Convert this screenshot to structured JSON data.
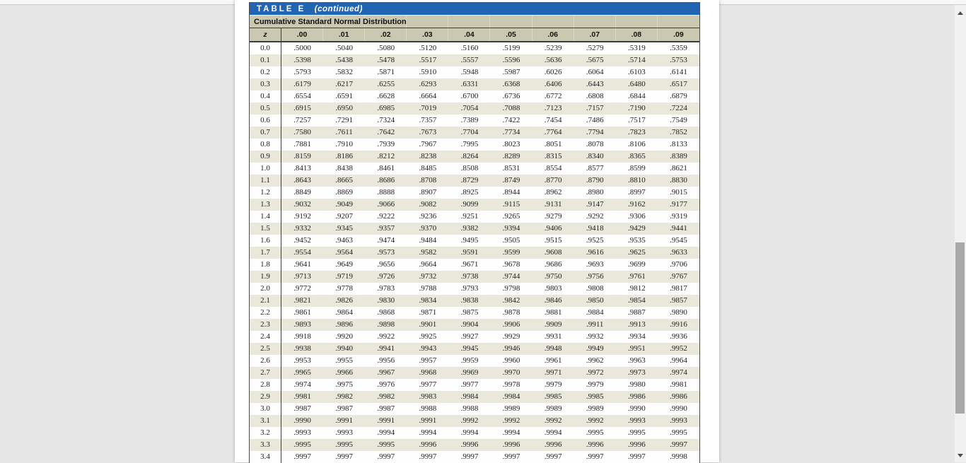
{
  "document": {
    "table_label": "TABLE E",
    "table_continued": "(continued)",
    "subtitle": "Cumulative Standard Normal Distribution"
  },
  "chart_data": {
    "type": "table",
    "title": "Cumulative Standard Normal Distribution",
    "columns": [
      "z",
      ".00",
      ".01",
      ".02",
      ".03",
      ".04",
      ".05",
      ".06",
      ".07",
      ".08",
      ".09"
    ],
    "rows": [
      [
        "0.0",
        ".5000",
        ".5040",
        ".5080",
        ".5120",
        ".5160",
        ".5199",
        ".5239",
        ".5279",
        ".5319",
        ".5359"
      ],
      [
        "0.1",
        ".5398",
        ".5438",
        ".5478",
        ".5517",
        ".5557",
        ".5596",
        ".5636",
        ".5675",
        ".5714",
        ".5753"
      ],
      [
        "0.2",
        ".5793",
        ".5832",
        ".5871",
        ".5910",
        ".5948",
        ".5987",
        ".6026",
        ".6064",
        ".6103",
        ".6141"
      ],
      [
        "0.3",
        ".6179",
        ".6217",
        ".6255",
        ".6293",
        ".6331",
        ".6368",
        ".6406",
        ".6443",
        ".6480",
        ".6517"
      ],
      [
        "0.4",
        ".6554",
        ".6591",
        ".6628",
        ".6664",
        ".6700",
        ".6736",
        ".6772",
        ".6808",
        ".6844",
        ".6879"
      ],
      [
        "0.5",
        ".6915",
        ".6950",
        ".6985",
        ".7019",
        ".7054",
        ".7088",
        ".7123",
        ".7157",
        ".7190",
        ".7224"
      ],
      [
        "0.6",
        ".7257",
        ".7291",
        ".7324",
        ".7357",
        ".7389",
        ".7422",
        ".7454",
        ".7486",
        ".7517",
        ".7549"
      ],
      [
        "0.7",
        ".7580",
        ".7611",
        ".7642",
        ".7673",
        ".7704",
        ".7734",
        ".7764",
        ".7794",
        ".7823",
        ".7852"
      ],
      [
        "0.8",
        ".7881",
        ".7910",
        ".7939",
        ".7967",
        ".7995",
        ".8023",
        ".8051",
        ".8078",
        ".8106",
        ".8133"
      ],
      [
        "0.9",
        ".8159",
        ".8186",
        ".8212",
        ".8238",
        ".8264",
        ".8289",
        ".8315",
        ".8340",
        ".8365",
        ".8389"
      ],
      [
        "1.0",
        ".8413",
        ".8438",
        ".8461",
        ".8485",
        ".8508",
        ".8531",
        ".8554",
        ".8577",
        ".8599",
        ".8621"
      ],
      [
        "1.1",
        ".8643",
        ".8665",
        ".8686",
        ".8708",
        ".8729",
        ".8749",
        ".8770",
        ".8790",
        ".8810",
        ".8830"
      ],
      [
        "1.2",
        ".8849",
        ".8869",
        ".8888",
        ".8907",
        ".8925",
        ".8944",
        ".8962",
        ".8980",
        ".8997",
        ".9015"
      ],
      [
        "1.3",
        ".9032",
        ".9049",
        ".9066",
        ".9082",
        ".9099",
        ".9115",
        ".9131",
        ".9147",
        ".9162",
        ".9177"
      ],
      [
        "1.4",
        ".9192",
        ".9207",
        ".9222",
        ".9236",
        ".9251",
        ".9265",
        ".9279",
        ".9292",
        ".9306",
        ".9319"
      ],
      [
        "1.5",
        ".9332",
        ".9345",
        ".9357",
        ".9370",
        ".9382",
        ".9394",
        ".9406",
        ".9418",
        ".9429",
        ".9441"
      ],
      [
        "1.6",
        ".9452",
        ".9463",
        ".9474",
        ".9484",
        ".9495",
        ".9505",
        ".9515",
        ".9525",
        ".9535",
        ".9545"
      ],
      [
        "1.7",
        ".9554",
        ".9564",
        ".9573",
        ".9582",
        ".9591",
        ".9599",
        ".9608",
        ".9616",
        ".9625",
        ".9633"
      ],
      [
        "1.8",
        ".9641",
        ".9649",
        ".9656",
        ".9664",
        ".9671",
        ".9678",
        ".9686",
        ".9693",
        ".9699",
        ".9706"
      ],
      [
        "1.9",
        ".9713",
        ".9719",
        ".9726",
        ".9732",
        ".9738",
        ".9744",
        ".9750",
        ".9756",
        ".9761",
        ".9767"
      ],
      [
        "2.0",
        ".9772",
        ".9778",
        ".9783",
        ".9788",
        ".9793",
        ".9798",
        ".9803",
        ".9808",
        ".9812",
        ".9817"
      ],
      [
        "2.1",
        ".9821",
        ".9826",
        ".9830",
        ".9834",
        ".9838",
        ".9842",
        ".9846",
        ".9850",
        ".9854",
        ".9857"
      ],
      [
        "2.2",
        ".9861",
        ".9864",
        ".9868",
        ".9871",
        ".9875",
        ".9878",
        ".9881",
        ".9884",
        ".9887",
        ".9890"
      ],
      [
        "2.3",
        ".9893",
        ".9896",
        ".9898",
        ".9901",
        ".9904",
        ".9906",
        ".9909",
        ".9911",
        ".9913",
        ".9916"
      ],
      [
        "2.4",
        ".9918",
        ".9920",
        ".9922",
        ".9925",
        ".9927",
        ".9929",
        ".9931",
        ".9932",
        ".9934",
        ".9936"
      ],
      [
        "2.5",
        ".9938",
        ".9940",
        ".9941",
        ".9943",
        ".9945",
        ".9946",
        ".9948",
        ".9949",
        ".9951",
        ".9952"
      ],
      [
        "2.6",
        ".9953",
        ".9955",
        ".9956",
        ".9957",
        ".9959",
        ".9960",
        ".9961",
        ".9962",
        ".9963",
        ".9964"
      ],
      [
        "2.7",
        ".9965",
        ".9966",
        ".9967",
        ".9968",
        ".9969",
        ".9970",
        ".9971",
        ".9972",
        ".9973",
        ".9974"
      ],
      [
        "2.8",
        ".9974",
        ".9975",
        ".9976",
        ".9977",
        ".9977",
        ".9978",
        ".9979",
        ".9979",
        ".9980",
        ".9981"
      ],
      [
        "2.9",
        ".9981",
        ".9982",
        ".9982",
        ".9983",
        ".9984",
        ".9984",
        ".9985",
        ".9985",
        ".9986",
        ".9986"
      ],
      [
        "3.0",
        ".9987",
        ".9987",
        ".9987",
        ".9988",
        ".9988",
        ".9989",
        ".9989",
        ".9989",
        ".9990",
        ".9990"
      ],
      [
        "3.1",
        ".9990",
        ".9991",
        ".9991",
        ".9991",
        ".9992",
        ".9992",
        ".9992",
        ".9992",
        ".9993",
        ".9993"
      ],
      [
        "3.2",
        ".9993",
        ".9993",
        ".9994",
        ".9994",
        ".9994",
        ".9994",
        ".9994",
        ".9995",
        ".9995",
        ".9995"
      ],
      [
        "3.3",
        ".9995",
        ".9995",
        ".9995",
        ".9996",
        ".9996",
        ".9996",
        ".9996",
        ".9996",
        ".9996",
        ".9997"
      ],
      [
        "3.4",
        ".9997",
        ".9997",
        ".9997",
        ".9997",
        ".9997",
        ".9997",
        ".9997",
        ".9997",
        ".9997",
        ".9998"
      ]
    ]
  },
  "colors": {
    "title_bar_bg": "#2165b2",
    "header_bg": "#cbc8b2",
    "row_alt_bg": "#e9e8db",
    "row_bg": "#fefefe",
    "page_bg": "#ffffff",
    "canvas_bg": "#e6e6e6",
    "grid_line_dark": "#3d3d3d",
    "scroll_thumb": "#a8a8a8"
  }
}
